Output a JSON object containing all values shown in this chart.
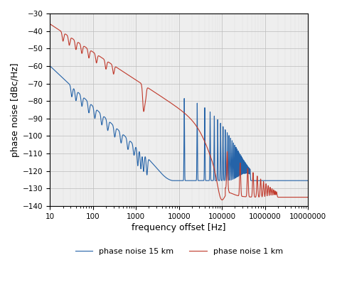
{
  "xlabel": "frequency offset [Hz]",
  "ylabel": "phase noise [dBc/Hz]",
  "xlim": [
    10,
    10000000
  ],
  "ylim": [
    -140,
    -30
  ],
  "yticks": [
    -140,
    -130,
    -120,
    -110,
    -100,
    -90,
    -80,
    -70,
    -60,
    -50,
    -40,
    -30
  ],
  "legend_labels": [
    "phase noise 15 km",
    "phase noise 1 km"
  ],
  "blue_color": "#2563a8",
  "red_color": "#c0392b",
  "background_color": "#eeeeee",
  "grid_major_color": "#bbbbbb",
  "grid_minor_color": "#dddddd",
  "figsize": [
    4.74,
    4.11
  ],
  "dpi": 100,
  "blue_floor": -125.5,
  "red_floor": -135.0,
  "blue_start": -60.0,
  "red_start": -36.0,
  "blue_slope": -23.0,
  "red_slope": -16.0,
  "blue_oeo_fund": 13300,
  "red_oeo_fund": 133000
}
